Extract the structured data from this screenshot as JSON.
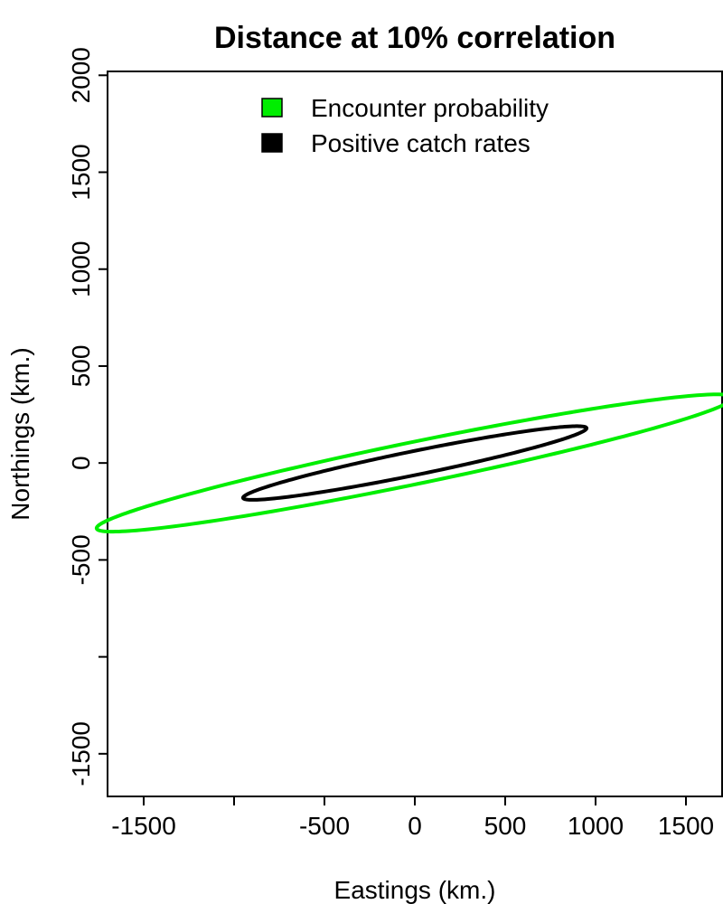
{
  "chart_data": {
    "type": "line",
    "title": "Distance at 10% correlation",
    "xlabel": "Eastings (km.)",
    "ylabel": "Northings (km.)",
    "xlim": [
      -1700,
      1700
    ],
    "ylim": [
      -1720,
      2020
    ],
    "x_ticks": [
      -1500,
      -1000,
      -500,
      0,
      500,
      1000,
      1500
    ],
    "x_tick_labels": [
      "-1500",
      "",
      "-500",
      "0",
      "500",
      "1000",
      "1500"
    ],
    "y_ticks": [
      -1500,
      -1000,
      -500,
      0,
      500,
      1000,
      1500,
      2000
    ],
    "y_tick_labels": [
      "-1500",
      "",
      "-500",
      "0",
      "500",
      "1000",
      "1500",
      "2000"
    ],
    "grid": false,
    "legend_position": "top-center",
    "series": [
      {
        "name": "Encounter probability",
        "color": "#00ee00",
        "shape": "ellipse",
        "center": [
          0,
          0
        ],
        "extreme_points": [
          [
            1435,
            210
          ],
          [
            -1435,
            -210
          ],
          [
            1020,
            285
          ],
          [
            -1020,
            -285
          ]
        ]
      },
      {
        "name": "Positive catch rates",
        "color": "#000000",
        "shape": "ellipse",
        "center": [
          0,
          0
        ],
        "extreme_points": [
          [
            775,
            110
          ],
          [
            -775,
            -110
          ],
          [
            550,
            155
          ],
          [
            -550,
            -155
          ]
        ]
      }
    ]
  }
}
